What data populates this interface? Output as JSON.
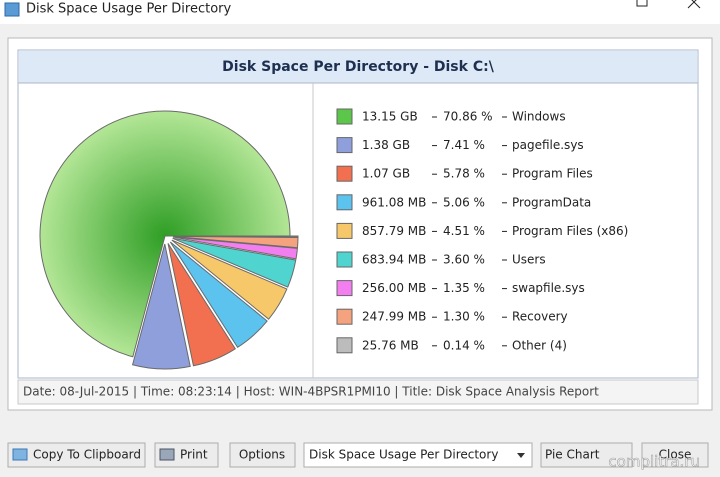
{
  "window": {
    "title": "Disk Space Usage Per Directory"
  },
  "chart_data": {
    "type": "pie",
    "title": "Disk Space Per Directory - Disk C:\\",
    "categories": [
      "Windows",
      "pagefile.sys",
      "Program Files",
      "ProgramData",
      "Program Files (x86)",
      "Users",
      "swapfile.sys",
      "Recovery",
      "Other (4)"
    ],
    "values": [
      70.86,
      7.41,
      5.78,
      5.06,
      4.51,
      3.6,
      1.35,
      1.3,
      0.14
    ],
    "value_labels": [
      "70.86 %",
      "7.41 %",
      "5.78 %",
      "5.06 %",
      "4.51 %",
      "3.60 %",
      "1.35 %",
      "1.30 %",
      "0.14 %"
    ],
    "sizes": [
      "13.15 GB",
      "1.38 GB",
      "1.07 GB",
      "961.08 MB",
      "857.79 MB",
      "683.94 MB",
      "256.00 MB",
      "247.99 MB",
      "25.76 MB"
    ],
    "colors": [
      "#5cc64a",
      "#8e9fdc",
      "#f2704f",
      "#5cc2ee",
      "#f7c86a",
      "#4fd4d0",
      "#f27ef0",
      "#f5a27f",
      "#bcbcbc"
    ]
  },
  "status": "Date: 08-Jul-2015 | Time: 08:23:14 | Host: WIN-4BPSR1PMI10 | Title: Disk Space Analysis Report",
  "buttons": {
    "copy": "Copy To Clipboard",
    "print": "Print",
    "options": "Options",
    "view": "Pie Chart",
    "close": "Close"
  },
  "dropdown": "Disk Space Usage Per Directory",
  "watermark": "complitra.ru"
}
